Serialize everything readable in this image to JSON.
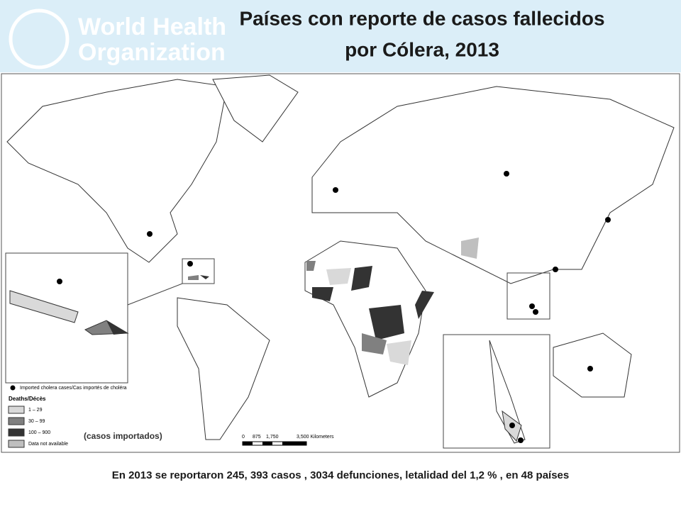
{
  "logo": {
    "line1": "World Health",
    "line2": "Organization"
  },
  "title": {
    "line1": "Países con reporte de casos fallecidos",
    "line2": "por Cólera, 2013"
  },
  "legend": {
    "imported": "Imported cholera cases/Cas importés de choléra",
    "heading": "Deaths/Décès",
    "items": [
      "1 – 29",
      "30 – 99",
      "100 – 900",
      "Data not available"
    ]
  },
  "annotation": "(casos importados)",
  "scale": {
    "labels": [
      "0",
      "875",
      "1,750",
      "3,500 Kilometers"
    ]
  },
  "footer": "En 2013 se reportaron 245, 393 casos , 3034 defunciones, letalidad del 1,2 % , en 48 países"
}
